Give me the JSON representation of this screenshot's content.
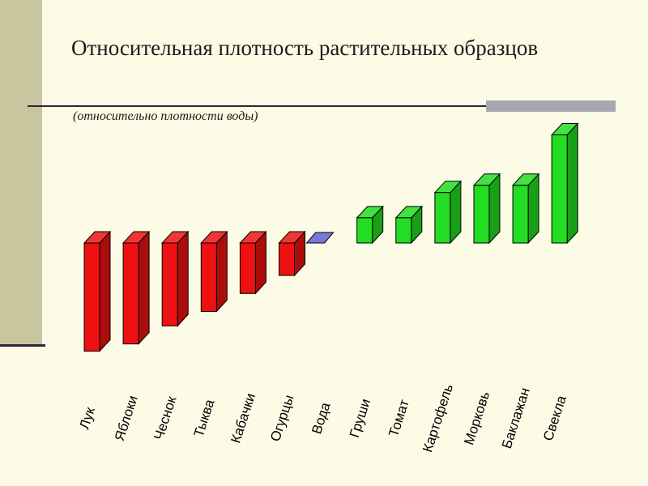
{
  "slide": {
    "title": "Относительная плотность растительных образцов",
    "subtitle": "(относительно плотности воды)"
  },
  "colors": {
    "below_water": "#ee1111",
    "water": "#7777d8",
    "above_water": "#22dd22"
  },
  "chart_data": {
    "type": "bar",
    "style": "3d-floating",
    "baseline_category": "Вода",
    "categories": [
      "Лук",
      "Яблоки",
      "Чеснок",
      "Тыква",
      "Кабачки",
      "Огурцы",
      "Вода",
      "Груши",
      "Томат",
      "Картофель",
      "Морковь",
      "Баклажан",
      "Свекла"
    ],
    "values": [
      -0.3,
      -0.28,
      -0.23,
      -0.19,
      -0.14,
      -0.09,
      0,
      0.07,
      0.07,
      0.14,
      0.16,
      0.16,
      0.3
    ],
    "ylim": [
      -0.3,
      0.3
    ],
    "grid": false,
    "legend": "none"
  }
}
